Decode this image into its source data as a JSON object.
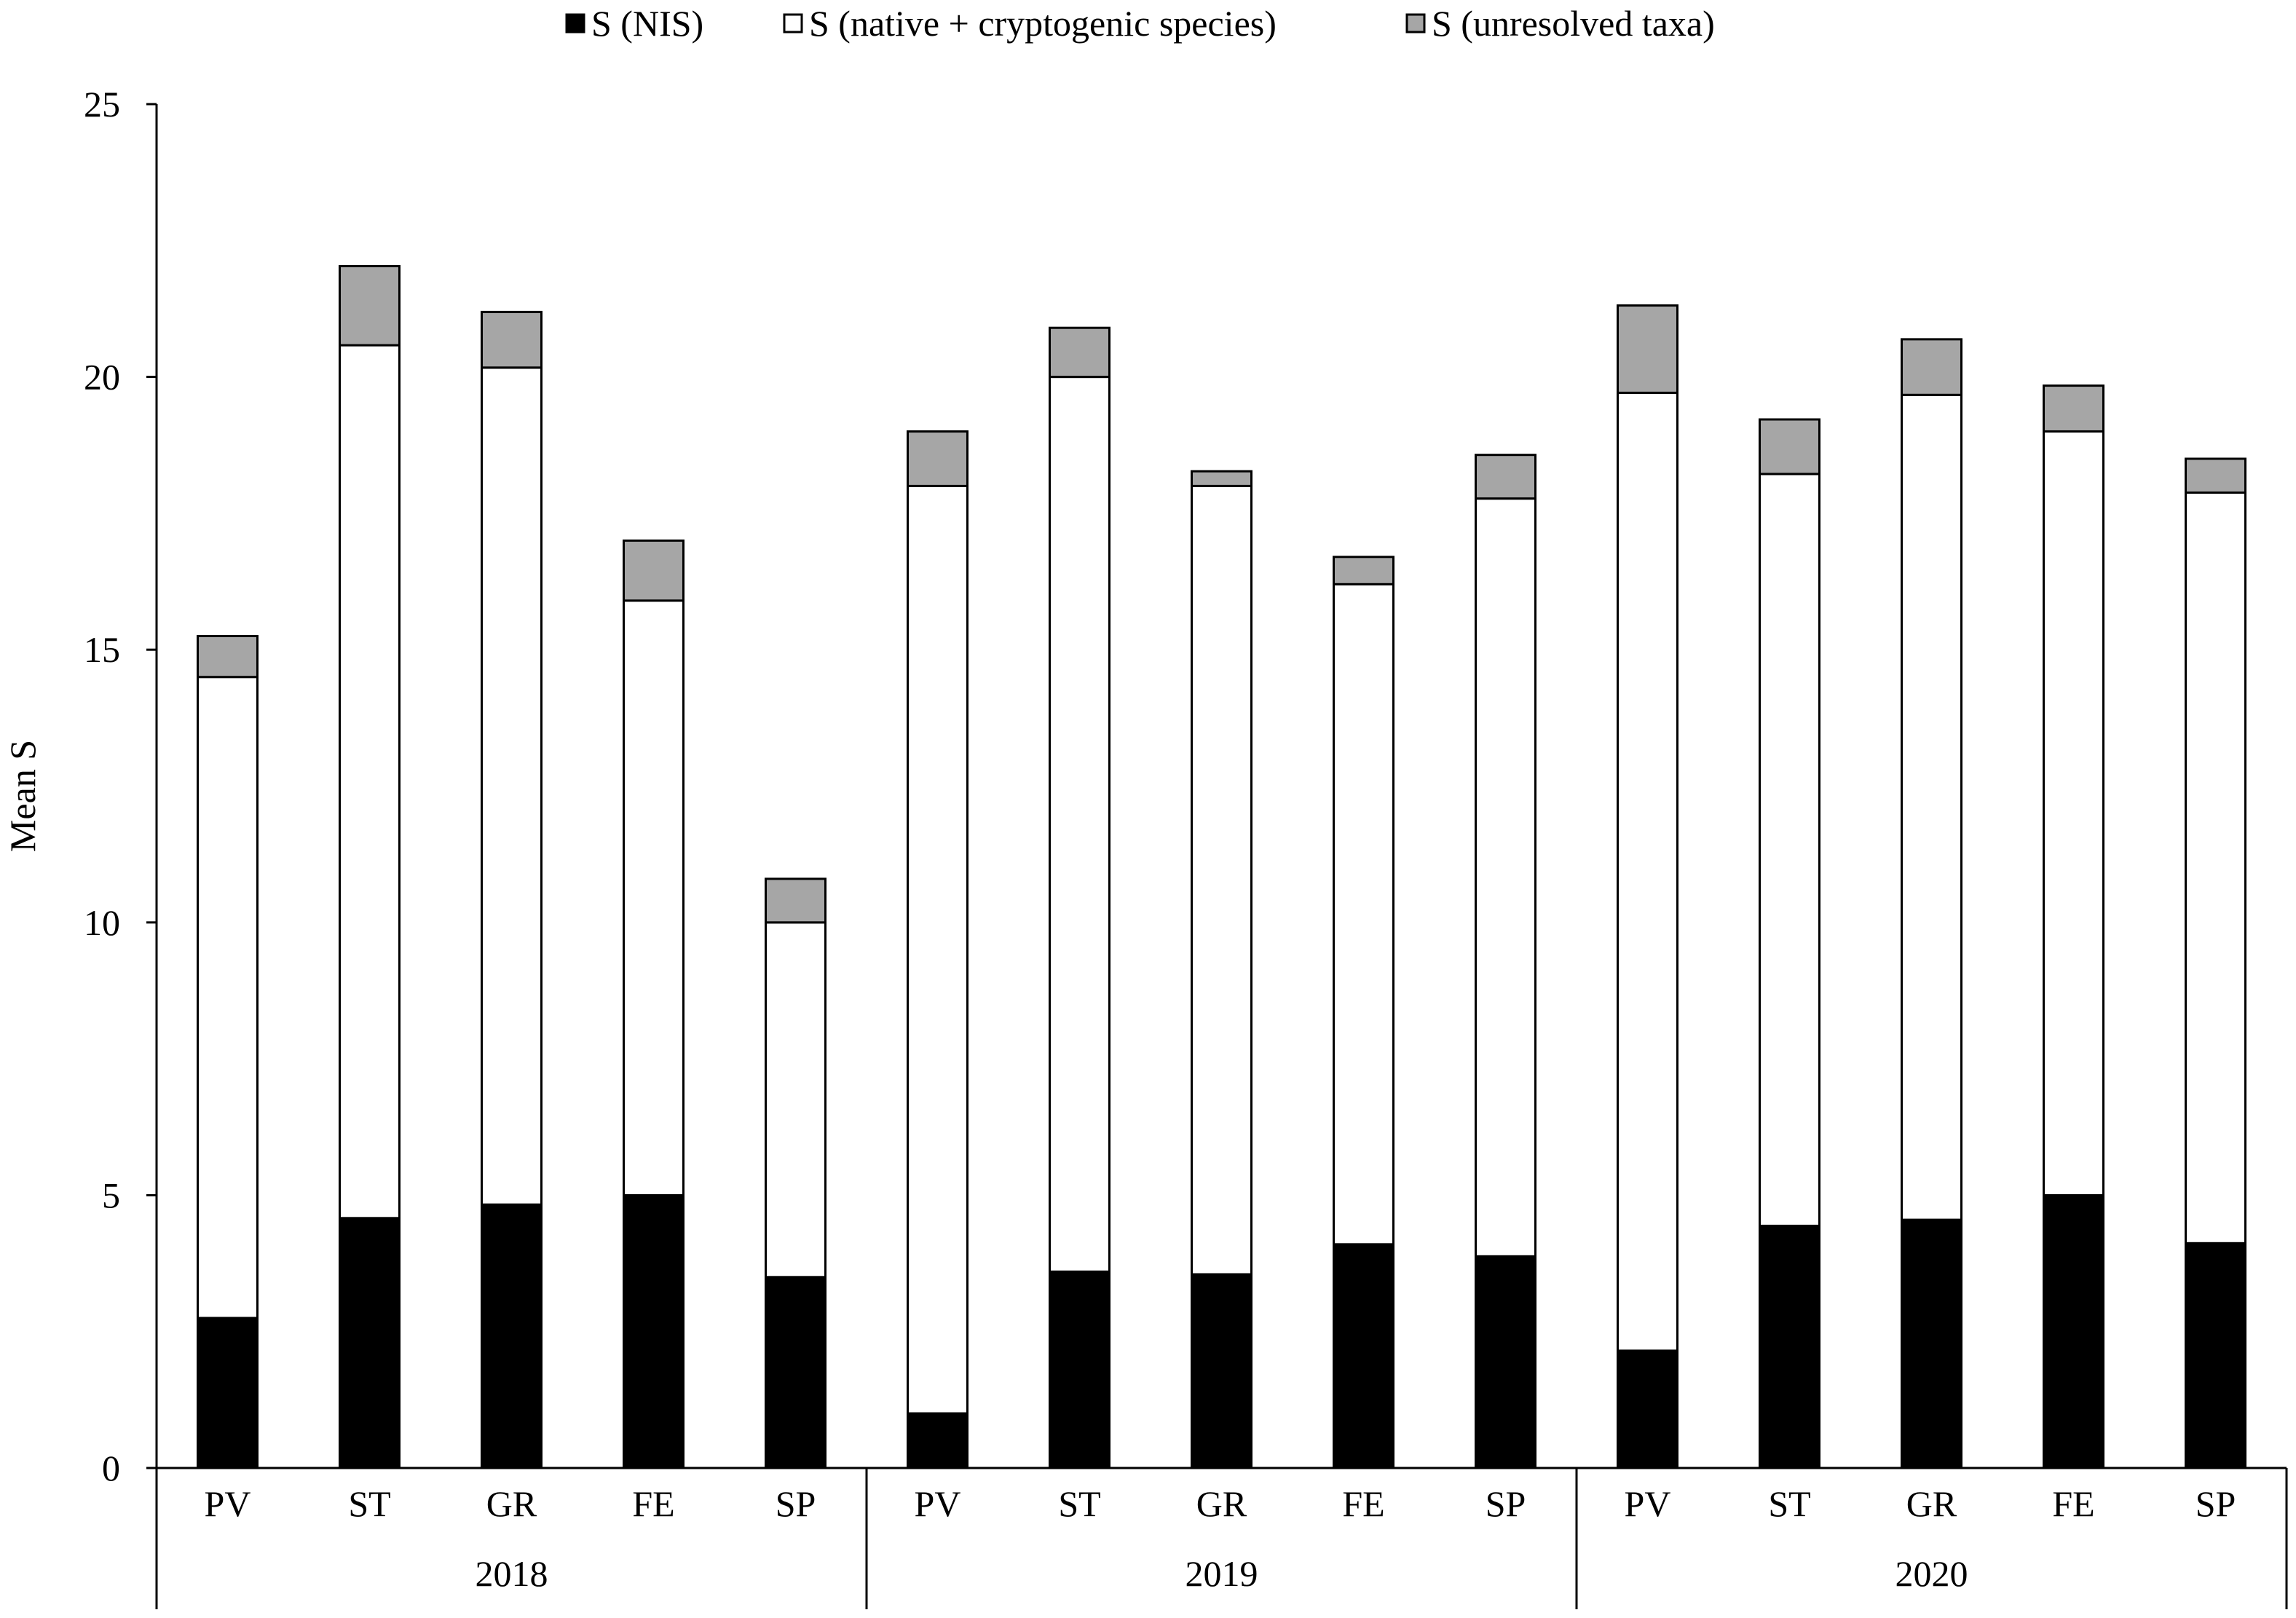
{
  "chart_data": {
    "type": "bar",
    "stacked": true,
    "title": "",
    "ylabel": "Mean S",
    "xlabel": "",
    "ylim": [
      0,
      25
    ],
    "yticks": [
      0,
      5,
      10,
      15,
      20,
      25
    ],
    "grid": false,
    "legend_position": "top",
    "groups": [
      {
        "label": "2018",
        "categories": [
          "PV",
          "ST",
          "GR",
          "FE",
          "SP"
        ]
      },
      {
        "label": "2019",
        "categories": [
          "PV",
          "ST",
          "GR",
          "FE",
          "SP"
        ]
      },
      {
        "label": "2020",
        "categories": [
          "PV",
          "ST",
          "GR",
          "FE",
          "SP"
        ]
      }
    ],
    "series": [
      {
        "name": "S (NIS)",
        "color": "#000000",
        "values": [
          2.75,
          4.58,
          4.83,
          5.0,
          3.5,
          1.0,
          3.6,
          3.55,
          4.1,
          3.88,
          2.15,
          4.44,
          4.55,
          5.0,
          4.12
        ]
      },
      {
        "name": "S (native + cryptogenic species)",
        "color": "#ffffff",
        "values": [
          11.75,
          16.0,
          15.34,
          10.9,
          6.5,
          17.0,
          16.4,
          14.45,
          12.1,
          13.89,
          17.56,
          13.78,
          15.12,
          14.0,
          13.76
        ]
      },
      {
        "name": "S (unresolved taxa)",
        "color": "#a6a6a6",
        "values": [
          0.75,
          1.45,
          1.02,
          1.1,
          0.8,
          1.0,
          0.9,
          0.27,
          0.5,
          0.8,
          1.6,
          1.0,
          1.02,
          0.84,
          0.62
        ]
      }
    ]
  }
}
